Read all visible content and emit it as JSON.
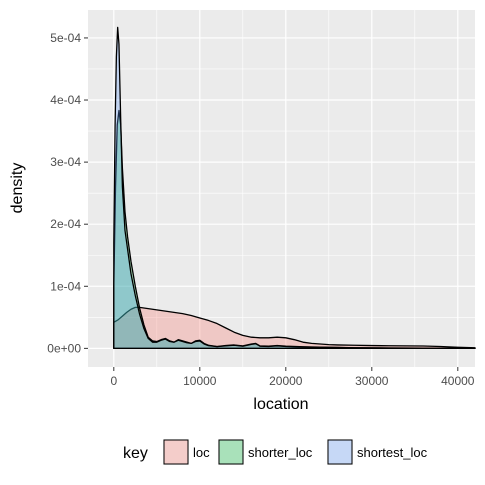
{
  "chart_data": {
    "type": "area",
    "title": "",
    "xlabel": "location",
    "ylabel": "density",
    "xlim": [
      -3000,
      42000
    ],
    "ylim": [
      -3e-05,
      0.000545
    ],
    "x_ticks": [
      0,
      10000,
      20000,
      30000,
      40000
    ],
    "x_tick_labels": [
      "0",
      "10000",
      "20000",
      "30000",
      "40000"
    ],
    "y_ticks": [
      0,
      0.0001,
      0.0002,
      0.0003,
      0.0004,
      0.0005
    ],
    "y_tick_labels": [
      "0e+00",
      "1e-04",
      "2e-04",
      "3e-04",
      "4e-04",
      "5e-04"
    ],
    "grid": true,
    "legend": {
      "title": "key",
      "position": "bottom"
    },
    "series": [
      {
        "name": "loc",
        "fill": "#f8766d",
        "points": [
          [
            0,
            4.2e-05
          ],
          [
            500,
            4.6e-05
          ],
          [
            1000,
            5.2e-05
          ],
          [
            1500,
            5.8e-05
          ],
          [
            2000,
            6.3e-05
          ],
          [
            2500,
            6.6e-05
          ],
          [
            3000,
            6.6e-05
          ],
          [
            4000,
            6.4e-05
          ],
          [
            5000,
            6.2e-05
          ],
          [
            6000,
            6e-05
          ],
          [
            7000,
            5.8e-05
          ],
          [
            8000,
            5.6e-05
          ],
          [
            9000,
            5.3e-05
          ],
          [
            10000,
            4.9e-05
          ],
          [
            11000,
            4.5e-05
          ],
          [
            12000,
            4e-05
          ],
          [
            13000,
            3.3e-05
          ],
          [
            14000,
            2.6e-05
          ],
          [
            15000,
            2.1e-05
          ],
          [
            16000,
            1.8e-05
          ],
          [
            17000,
            1.7e-05
          ],
          [
            18000,
            1.7e-05
          ],
          [
            19000,
            1.8e-05
          ],
          [
            20000,
            1.7e-05
          ],
          [
            21000,
            1.4e-05
          ],
          [
            22000,
            1e-05
          ],
          [
            23000,
            8e-06
          ],
          [
            24000,
            7e-06
          ],
          [
            25000,
            6e-06
          ],
          [
            26000,
            5.5e-06
          ],
          [
            28000,
            5e-06
          ],
          [
            30000,
            4.5e-06
          ],
          [
            32000,
            4.2e-06
          ],
          [
            34000,
            4e-06
          ],
          [
            36000,
            3.8e-06
          ],
          [
            38000,
            3e-06
          ],
          [
            40000,
            1.8e-06
          ],
          [
            42000,
            1e-06
          ]
        ]
      },
      {
        "name": "shorter_loc",
        "fill": "#00ba38",
        "points": [
          [
            0,
            0.0001
          ],
          [
            200,
            0.00026
          ],
          [
            400,
            0.00036
          ],
          [
            600,
            0.000383
          ],
          [
            800,
            0.00036
          ],
          [
            1000,
            0.00029
          ],
          [
            1300,
            0.00022
          ],
          [
            1600,
            0.00018
          ],
          [
            2000,
            0.00014
          ],
          [
            2500,
            0.0001
          ],
          [
            3000,
            6.5e-05
          ],
          [
            3500,
            3.8e-05
          ],
          [
            4000,
            1.8e-05
          ],
          [
            4500,
            1.2e-05
          ],
          [
            5000,
            1.1e-05
          ],
          [
            5500,
            1.4e-05
          ],
          [
            6000,
            1.6e-05
          ],
          [
            6500,
            1.2e-05
          ],
          [
            7000,
            1e-05
          ],
          [
            7500,
            1.4e-05
          ],
          [
            8000,
            1.2e-05
          ],
          [
            8500,
            1e-05
          ],
          [
            9000,
            8e-06
          ],
          [
            9500,
            1.2e-05
          ],
          [
            10000,
            1.3e-05
          ],
          [
            10500,
            8e-06
          ],
          [
            11000,
            5e-06
          ],
          [
            12000,
            3e-06
          ],
          [
            13000,
            4.5e-06
          ],
          [
            14000,
            5.5e-06
          ],
          [
            15000,
            4e-06
          ],
          [
            16000,
            7e-06
          ],
          [
            16500,
            8e-06
          ],
          [
            17000,
            4e-06
          ],
          [
            18000,
            3.5e-06
          ],
          [
            19000,
            4.5e-06
          ],
          [
            20000,
            3.5e-06
          ],
          [
            22000,
            2.5e-06
          ],
          [
            24000,
            2e-06
          ],
          [
            26000,
            1.5e-06
          ],
          [
            28000,
            1e-06
          ],
          [
            30000,
            8e-07
          ],
          [
            32000,
            6e-07
          ],
          [
            34000,
            5e-07
          ],
          [
            36000,
            4e-07
          ],
          [
            38000,
            3e-07
          ],
          [
            40000,
            2e-07
          ],
          [
            42000,
            1e-07
          ]
        ]
      },
      {
        "name": "shortest_loc",
        "fill": "#619cff",
        "points": [
          [
            0,
            0.00017
          ],
          [
            150,
            0.00036
          ],
          [
            300,
            0.00047
          ],
          [
            450,
            0.000517
          ],
          [
            600,
            0.00049
          ],
          [
            800,
            0.00037
          ],
          [
            1000,
            0.00026
          ],
          [
            1300,
            0.00019
          ],
          [
            1600,
            0.00016
          ],
          [
            2000,
            0.00012
          ],
          [
            2500,
            8.5e-05
          ],
          [
            3000,
            5.5e-05
          ],
          [
            3500,
            3.2e-05
          ],
          [
            4000,
            1.6e-05
          ],
          [
            4500,
            1e-05
          ],
          [
            5000,
            1e-05
          ],
          [
            5500,
            1.3e-05
          ],
          [
            6000,
            1.5e-05
          ],
          [
            6500,
            1.1e-05
          ],
          [
            7000,
            1e-05
          ],
          [
            7500,
            1.3e-05
          ],
          [
            8000,
            1.1e-05
          ],
          [
            8500,
            9e-06
          ],
          [
            9000,
            8e-06
          ],
          [
            9500,
            1.1e-05
          ],
          [
            10000,
            1.2e-05
          ],
          [
            10500,
            7e-06
          ],
          [
            11000,
            4.5e-06
          ],
          [
            12000,
            2.8e-06
          ],
          [
            13000,
            4e-06
          ],
          [
            14000,
            5e-06
          ],
          [
            15000,
            3.5e-06
          ],
          [
            16000,
            6.5e-06
          ],
          [
            16500,
            7.5e-06
          ],
          [
            17000,
            3.5e-06
          ],
          [
            18000,
            3e-06
          ],
          [
            19000,
            4e-06
          ],
          [
            20000,
            3e-06
          ],
          [
            22000,
            2.2e-06
          ],
          [
            24000,
            1.8e-06
          ],
          [
            26000,
            1.3e-06
          ],
          [
            28000,
            9e-07
          ],
          [
            30000,
            7e-07
          ],
          [
            32000,
            5e-07
          ],
          [
            34000,
            4e-07
          ],
          [
            36000,
            3e-07
          ],
          [
            38000,
            2e-07
          ],
          [
            40000,
            1e-07
          ],
          [
            42000,
            1e-07
          ]
        ]
      }
    ]
  }
}
